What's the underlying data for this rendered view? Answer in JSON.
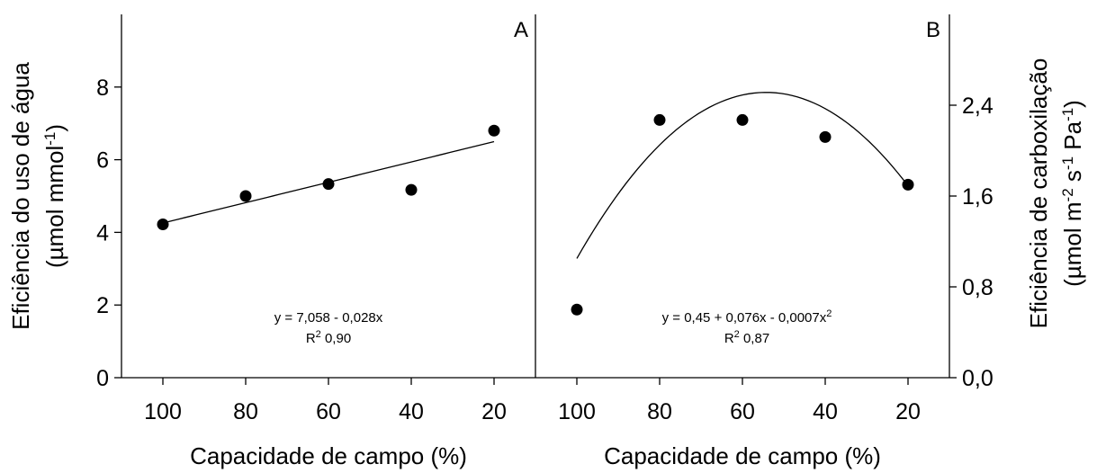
{
  "chart_data": [
    {
      "panel": "A",
      "type": "scatter",
      "x": [
        100,
        80,
        60,
        40,
        20
      ],
      "y": [
        4.22,
        5.0,
        5.33,
        5.17,
        6.8
      ],
      "xticks": [
        "100",
        "80",
        "60",
        "40",
        "20"
      ],
      "xlim": [
        110,
        10
      ],
      "ylim": [
        0,
        10
      ],
      "yticks": [
        "0",
        "2",
        "4",
        "6",
        "8"
      ],
      "ytick_values": [
        0,
        2,
        4,
        6,
        8
      ],
      "xlabel": "Capacidade de campo (%)",
      "ylabel_line1": "Eficiência do uso de água",
      "ylabel_line2_base": "(µmol mmol",
      "ylabel_line2_sup": "-1",
      "ylabel_line2_end": ")",
      "fit": {
        "intercept": 7.058,
        "slope": -0.028,
        "x_range": [
          100,
          20
        ]
      },
      "equation": "y = 7,058 - 0,028x",
      "r2_prefix": "R",
      "r2_sup": "2",
      "r2_value": " 0,90"
    },
    {
      "panel": "B",
      "type": "scatter",
      "x": [
        100,
        80,
        60,
        40,
        20
      ],
      "y": [
        0.6,
        2.27,
        2.27,
        2.12,
        1.7
      ],
      "xticks": [
        "100",
        "80",
        "60",
        "40",
        "20"
      ],
      "xlim": [
        110,
        10
      ],
      "ylim": [
        0,
        3.2
      ],
      "yticks": [
        "0,0",
        "0,8",
        "1,6",
        "2,4"
      ],
      "ytick_values": [
        0,
        0.8,
        1.6,
        2.4
      ],
      "xlabel": "Capacidade de campo (%)",
      "ylabel_line1": "Eficiência de carboxilação",
      "ylabel_line2": "(µmol m-2 s-1 Pa-1)",
      "fit": {
        "a": 0.45,
        "b": 0.076,
        "c": -0.0007,
        "x_range": [
          100,
          20
        ]
      },
      "equation_base": "y = 0,45 + 0,076x - 0,0007x",
      "equation_sup": "2",
      "r2_prefix": "R",
      "r2_sup": "2",
      "r2_value": " 0,87"
    }
  ]
}
